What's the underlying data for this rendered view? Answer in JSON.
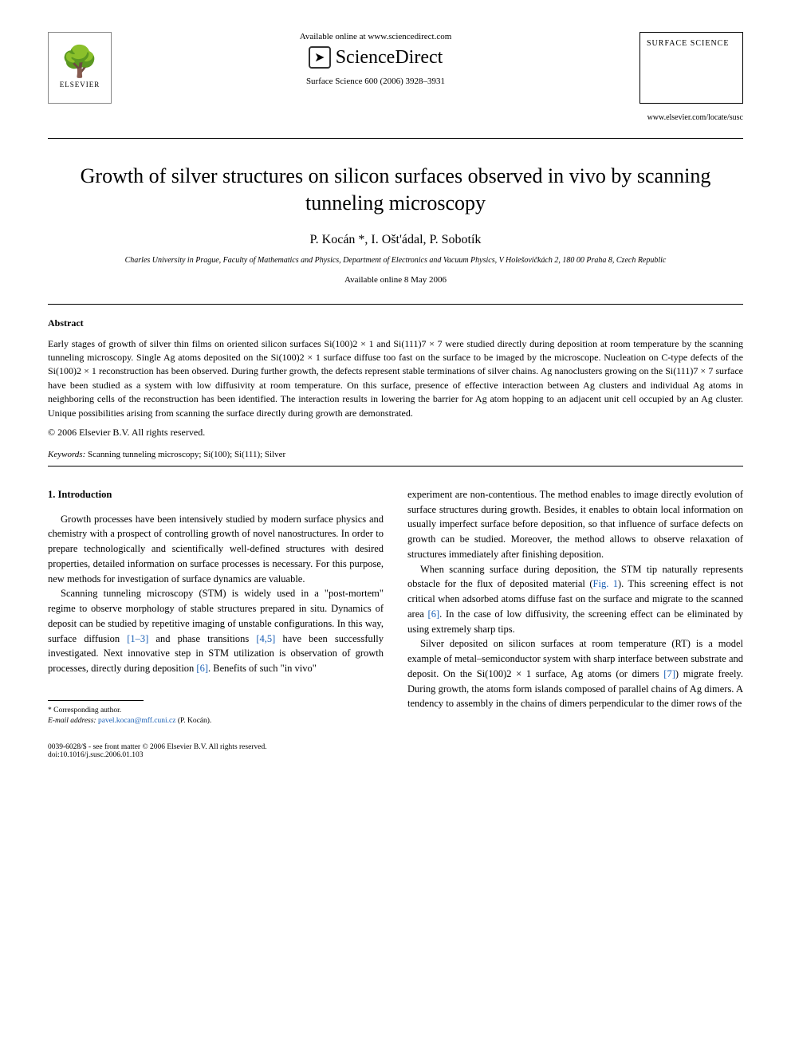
{
  "header": {
    "elsevier_label": "ELSEVIER",
    "available_online": "Available online at www.sciencedirect.com",
    "science_direct": "ScienceDirect",
    "journal_reference": "Surface Science 600 (2006) 3928–3931",
    "journal_box_title": "SURFACE SCIENCE",
    "journal_link": "www.elsevier.com/locate/susc"
  },
  "article": {
    "title": "Growth of silver structures on silicon surfaces observed in vivo by scanning tunneling microscopy",
    "authors": "P. Kocán *, I. Ošt'ádal, P. Sobotík",
    "affiliation": "Charles University in Prague, Faculty of Mathematics and Physics, Department of Electronics and Vacuum Physics, V Holešovičkách 2, 180 00 Praha 8, Czech Republic",
    "available_date": "Available online 8 May 2006"
  },
  "abstract": {
    "label": "Abstract",
    "text": "Early stages of growth of silver thin films on oriented silicon surfaces Si(100)2 × 1 and Si(111)7 × 7 were studied directly during deposition at room temperature by the scanning tunneling microscopy. Single Ag atoms deposited on the Si(100)2 × 1 surface diffuse too fast on the surface to be imaged by the microscope. Nucleation on C-type defects of the Si(100)2 × 1 reconstruction has been observed. During further growth, the defects represent stable terminations of silver chains. Ag nanoclusters growing on the Si(111)7 × 7 surface have been studied as a system with low diffusivity at room temperature. On this surface, presence of effective interaction between Ag clusters and individual Ag atoms in neighboring cells of the reconstruction has been identified. The interaction results in lowering the barrier for Ag atom hopping to an adjacent unit cell occupied by an Ag cluster. Unique possibilities arising from scanning the surface directly during growth are demonstrated.",
    "copyright": "© 2006 Elsevier B.V. All rights reserved.",
    "keywords_label": "Keywords:",
    "keywords": " Scanning tunneling microscopy; Si(100); Si(111); Silver"
  },
  "body": {
    "section_heading": "1. Introduction",
    "col1_p1": "Growth processes have been intensively studied by modern surface physics and chemistry with a prospect of controlling growth of novel nanostructures. In order to prepare technologically and scientifically well-defined structures with desired properties, detailed information on surface processes is necessary. For this purpose, new methods for investigation of surface dynamics are valuable.",
    "col1_p2a": "Scanning tunneling microscopy (STM) is widely used in a \"post-mortem\" regime to observe morphology of stable structures prepared in situ. Dynamics of deposit can be studied by repetitive imaging of unstable configurations. In this way, surface diffusion ",
    "ref1": "[1–3]",
    "col1_p2b": " and phase transitions ",
    "ref2": "[4,5]",
    "col1_p2c": " have been successfully investigated. Next innovative step in STM utilization is observation of growth processes, directly during deposition ",
    "ref3": "[6]",
    "col1_p2d": ". Benefits of such \"in vivo\"",
    "col2_p1": "experiment are non-contentious. The method enables to image directly evolution of surface structures during growth. Besides, it enables to obtain local information on usually imperfect surface before deposition, so that influence of surface defects on growth can be studied. Moreover, the method allows to observe relaxation of structures immediately after finishing deposition.",
    "col2_p2a": "When scanning surface during deposition, the STM tip naturally represents obstacle for the flux of deposited material (",
    "fig1": "Fig. 1",
    "col2_p2b": "). This screening effect is not critical when adsorbed atoms diffuse fast on the surface and migrate to the scanned area ",
    "ref6a": "[6]",
    "col2_p2c": ". In the case of low diffusivity, the screening effect can be eliminated by using extremely sharp tips.",
    "col2_p3a": "Silver deposited on silicon surfaces at room temperature (RT) is a model example of metal–semiconductor system with sharp interface between substrate and deposit. On the Si(100)2 × 1 surface, Ag atoms (or dimers ",
    "ref7": "[7]",
    "col2_p3b": ") migrate freely. During growth, the atoms form islands composed of parallel chains of Ag dimers. A tendency to assembly in the chains of dimers perpendicular to the dimer rows of the"
  },
  "footnote": {
    "corresponding": "* Corresponding author.",
    "email_label": "E-mail address:",
    "email": "pavel.kocan@mff.cuni.cz",
    "email_who": " (P. Kocán)."
  },
  "footer": {
    "left1": "0039-6028/$ - see front matter © 2006 Elsevier B.V. All rights reserved.",
    "left2": "doi:10.1016/j.susc.2006.01.103"
  }
}
